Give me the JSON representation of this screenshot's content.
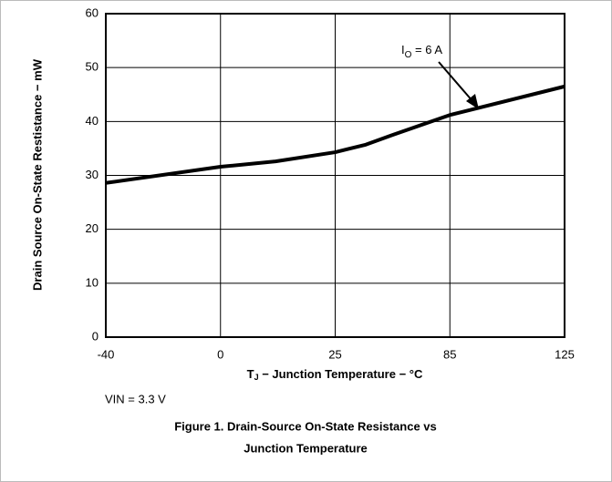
{
  "chart_data": {
    "type": "line",
    "x": [
      -40,
      0,
      12,
      25,
      41,
      55,
      85,
      125
    ],
    "series": [
      {
        "name": null,
        "color": "#000000",
        "values": [
          28.6,
          31.6,
          32.6,
          34.3,
          35.7,
          37.5,
          41.2,
          46.5
        ]
      }
    ],
    "xlim": [
      -40,
      125
    ],
    "xticks": [
      -40,
      0,
      25,
      85,
      125
    ],
    "ylim": [
      0,
      60
    ],
    "yticks": [
      0,
      10,
      20,
      30,
      40,
      50,
      60
    ],
    "grid": true,
    "ylabel": "Drain Source On-State Restistance − mW",
    "xlabel": {
      "main": "T",
      "subscript": "J",
      "suffix": " − Junction Temperature − °C"
    },
    "annotation": {
      "main": "I",
      "subscript": "O",
      "suffix": " = 6 A"
    },
    "note": "VIN = 3.3 V",
    "caption": [
      "Figure 1. Drain-Source On-State Resistance vs",
      "Junction Temperature"
    ]
  }
}
